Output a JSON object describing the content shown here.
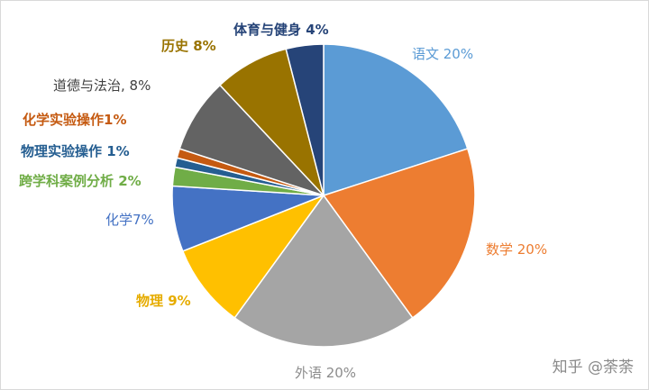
{
  "chart_data": {
    "type": "pie",
    "title": "",
    "start_angle_deg": 0,
    "direction": "clockwise",
    "slices": [
      {
        "name": "语文",
        "value": 20,
        "label": "语文 20%",
        "color": "#5b9bd5",
        "label_color": "#5b9bd5",
        "bold": false
      },
      {
        "name": "数学",
        "value": 20,
        "label": "数学 20%",
        "color": "#ed7d31",
        "label_color": "#ed7d31",
        "bold": false
      },
      {
        "name": "外语",
        "value": 20,
        "label": "外语 20%",
        "color": "#a5a5a5",
        "label_color": "#8c8c8c",
        "bold": false
      },
      {
        "name": "物理",
        "value": 9,
        "label": "物理 9%",
        "color": "#ffc000",
        "label_color": "#e6ac00",
        "bold": true
      },
      {
        "name": "化学",
        "value": 7,
        "label": "化学7%",
        "color": "#4472c4",
        "label_color": "#4472c4",
        "bold": false
      },
      {
        "name": "跨学科案例分析",
        "value": 2,
        "label": "跨学科案例分析 2%",
        "color": "#70ad47",
        "label_color": "#70ad47",
        "bold": true
      },
      {
        "name": "物理实验操作",
        "value": 1,
        "label": "物理实验操作 1%",
        "color": "#255e91",
        "label_color": "#255e91",
        "bold": true
      },
      {
        "name": "化学实验操作",
        "value": 1,
        "label": "化学实验操作1%",
        "color": "#c55a11",
        "label_color": "#c55a11",
        "bold": true
      },
      {
        "name": "道德与法治",
        "value": 8,
        "label": "道德与法治, 8%",
        "color": "#636363",
        "label_color": "#404040",
        "bold": false
      },
      {
        "name": "历史",
        "value": 8,
        "label": "历史 8%",
        "color": "#997300",
        "label_color": "#997300",
        "bold": true
      },
      {
        "name": "体育与健身",
        "value": 4,
        "label": "体育与健身 4%",
        "color": "#264478",
        "label_color": "#264478",
        "bold": true
      }
    ]
  },
  "watermark": "知乎 @荼荼"
}
